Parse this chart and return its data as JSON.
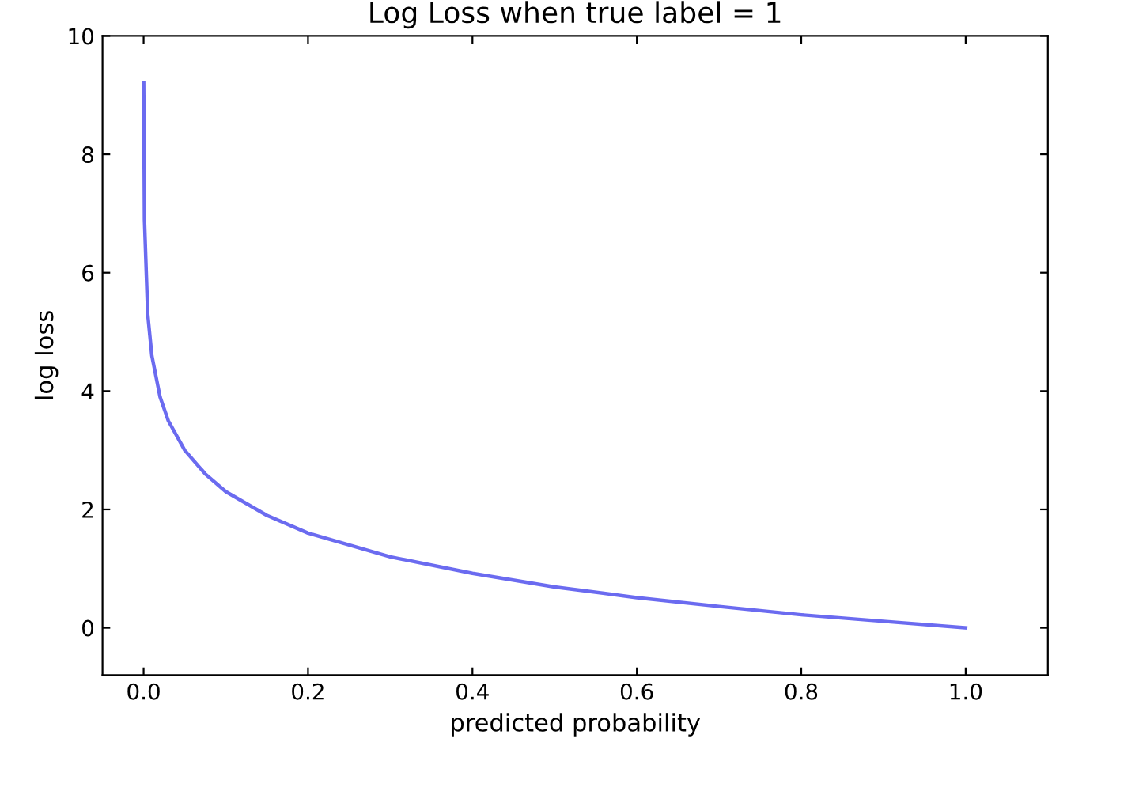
{
  "chart_data": {
    "type": "line",
    "title": "Log Loss when true label = 1",
    "xlabel": "predicted probability",
    "ylabel": "log loss",
    "x": [
      0.0001,
      0.001,
      0.005,
      0.01,
      0.02,
      0.03,
      0.05,
      0.075,
      0.1,
      0.15,
      0.2,
      0.3,
      0.4,
      0.5,
      0.6,
      0.7,
      0.8,
      0.9,
      1.0
    ],
    "series": [
      {
        "color": "#6b6bf0",
        "values": [
          9.2,
          6.9,
          5.3,
          4.6,
          3.9,
          3.5,
          3.0,
          2.6,
          2.3,
          1.9,
          1.6,
          1.2,
          0.92,
          0.69,
          0.51,
          0.36,
          0.22,
          0.11,
          0.0
        ]
      }
    ],
    "xlim": [
      -0.05,
      1.1
    ],
    "ylim": [
      -0.8,
      10
    ],
    "xticks": [
      {
        "value": 0,
        "label": "0.0"
      },
      0.2,
      0.4,
      0.6,
      0.8,
      {
        "value": 1,
        "label": "1.0"
      }
    ],
    "yticks": [
      0,
      2,
      4,
      6,
      8,
      10
    ],
    "grid": false,
    "legend": false,
    "marker": "none",
    "line_style": "solid"
  }
}
